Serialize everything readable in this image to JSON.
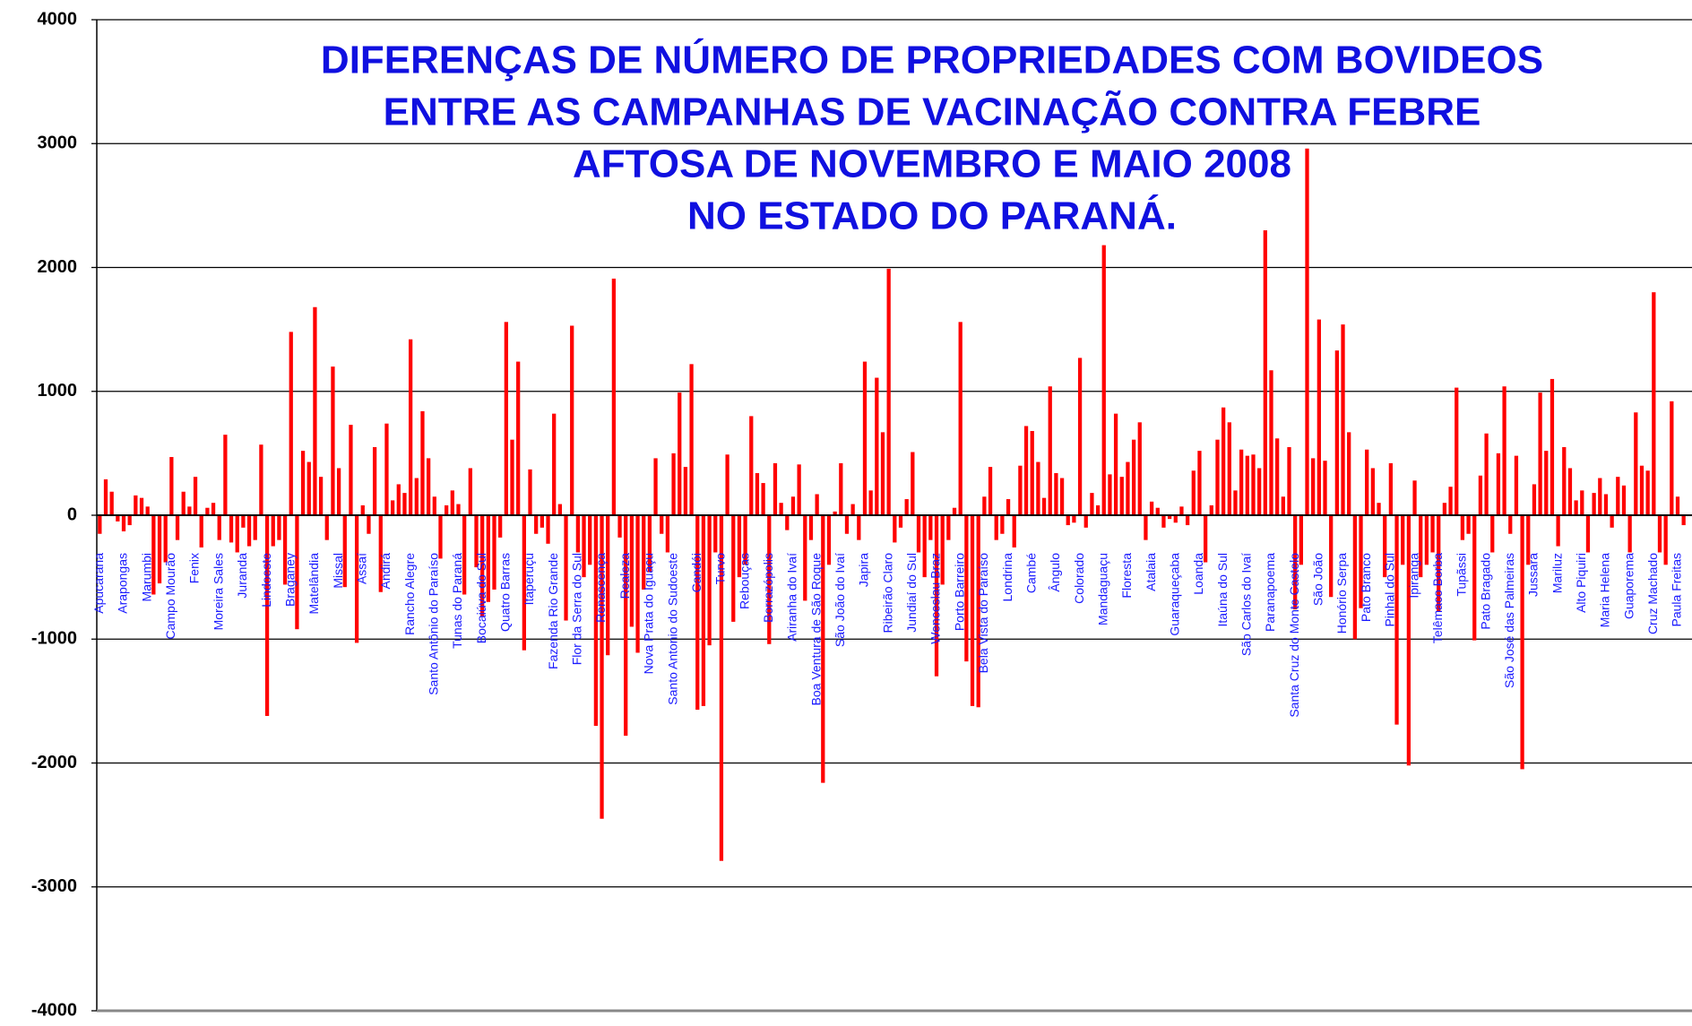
{
  "chart_data": {
    "type": "bar",
    "title": [
      "DIFERENÇAS DE NÚMERO DE PROPRIEDADES COM BOVIDEOS",
      "ENTRE AS CAMPANHAS DE VACINAÇÃO CONTRA FEBRE",
      "AFTOSA DE NOVEMBRO E MAIO 2008",
      "NO ESTADO DO PARANÁ."
    ],
    "color": "#ff0000",
    "grid": true,
    "ylim": [
      -4000,
      4000
    ],
    "yticks": [
      -4000,
      -3000,
      -2000,
      -1000,
      0,
      1000,
      2000,
      3000,
      4000
    ],
    "categories": [
      "Apucarana",
      null,
      null,
      null,
      "Arapongas",
      null,
      null,
      null,
      "Marumbi",
      null,
      null,
      null,
      "Campo Mourão",
      null,
      null,
      null,
      "Fenix",
      null,
      null,
      null,
      "Moreira Sales",
      null,
      null,
      null,
      "Juranda",
      null,
      null,
      null,
      "Lindoeste",
      null,
      null,
      null,
      "Braganey",
      null,
      null,
      null,
      "Matelândia",
      null,
      null,
      null,
      "Missal",
      null,
      null,
      null,
      "Assaí",
      null,
      null,
      null,
      "Andirá",
      null,
      null,
      null,
      "Rancho Alegre",
      null,
      null,
      null,
      "Santo Antônio do Paraíso",
      null,
      null,
      null,
      "Tunas do Paraná",
      null,
      null,
      null,
      "Bocaiúva do Sul",
      null,
      null,
      null,
      "Quatro Barras",
      null,
      null,
      null,
      "Itaperuçu",
      null,
      null,
      null,
      "Fazenda Rio Grande",
      null,
      null,
      null,
      "Flor da Serra do Sul",
      null,
      null,
      null,
      "Renascença",
      null,
      null,
      null,
      "Realeza",
      null,
      null,
      null,
      "Nova Prata do Iguaçu",
      null,
      null,
      null,
      "Santo Antonio do Sudoeste",
      null,
      null,
      null,
      "Candói",
      null,
      null,
      null,
      "Turvo",
      null,
      null,
      null,
      "Rebouças",
      null,
      null,
      null,
      "Borrazópolis",
      null,
      null,
      null,
      "Ariranha do Ivaí",
      null,
      null,
      null,
      "Boa Ventura de São Roque",
      null,
      null,
      null,
      "São João do Ivaí",
      null,
      null,
      null,
      "Japira",
      null,
      null,
      null,
      "Ribeirão Claro",
      null,
      null,
      null,
      "Jundiaí do Sul",
      null,
      null,
      null,
      "Wenceslau Braz",
      null,
      null,
      null,
      "Porto Barreiro",
      null,
      null,
      null,
      "Bela Vista do Paraíso",
      null,
      null,
      null,
      "Londrina",
      null,
      null,
      null,
      "Cambé",
      null,
      null,
      null,
      "Ângulo",
      null,
      null,
      null,
      "Colorado",
      null,
      null,
      null,
      "Mandaguaçu",
      null,
      null,
      null,
      "Floresta",
      null,
      null,
      null,
      "Atalaia",
      null,
      null,
      null,
      "Guaraqueçaba",
      null,
      null,
      null,
      "Loanda",
      null,
      null,
      null,
      "Itaúna do Sul",
      null,
      null,
      null,
      "São Carlos do Ivaí",
      null,
      null,
      null,
      "Paranapoema",
      null,
      null,
      null,
      "Santa Cruz do Monte Castelo",
      null,
      null,
      null,
      "São João",
      null,
      null,
      null,
      "Honório Serpa",
      null,
      null,
      null,
      "Pato Branco",
      null,
      null,
      null,
      "Pinhal do Sul",
      null,
      null,
      null,
      "Ipiranga",
      null,
      null,
      null,
      "Telêmaco Borba",
      null,
      null,
      null,
      "Tupãssi",
      null,
      null,
      null,
      "Pato Bragado",
      null,
      null,
      null,
      "São José das Palmeiras",
      null,
      null,
      null,
      "Jussara",
      null,
      null,
      null,
      "Mariluz",
      null,
      null,
      null,
      "Alto Piquiri",
      null,
      null,
      null,
      "Maria Helena",
      null,
      null,
      null,
      "Guaporema",
      null,
      null,
      null,
      "Cruz Machado",
      null,
      null,
      null,
      "Paula Freitas",
      null
    ],
    "values": [
      -150,
      290,
      190,
      -50,
      -130,
      -80,
      160,
      140,
      70,
      -640,
      -550,
      -380,
      470,
      -200,
      190,
      70,
      310,
      -260,
      60,
      100,
      -200,
      650,
      -220,
      -300,
      -100,
      -250,
      -200,
      570,
      -1620,
      -250,
      -200,
      -560,
      1480,
      -920,
      520,
      430,
      1680,
      310,
      -200,
      1200,
      380,
      -580,
      730,
      -1030,
      80,
      -150,
      550,
      -620,
      740,
      120,
      250,
      180,
      1420,
      300,
      840,
      460,
      150,
      -350,
      80,
      200,
      90,
      -640,
      380,
      -420,
      -820,
      -700,
      -600,
      -180,
      1560,
      610,
      1240,
      -1090,
      370,
      -150,
      -100,
      -230,
      820,
      90,
      -850,
      1530,
      -300,
      -500,
      -400,
      -1700,
      -2450,
      -1130,
      1910,
      -180,
      -1780,
      -900,
      -1110,
      -600,
      -460,
      460,
      -150,
      -300,
      500,
      990,
      390,
      1220,
      -1570,
      -1540,
      -1050,
      -300,
      -2790,
      490,
      -860,
      -500,
      -400,
      800,
      340,
      260,
      -1040,
      420,
      100,
      -120,
      150,
      410,
      -690,
      -200,
      170,
      -2160,
      -400,
      30,
      420,
      -150,
      90,
      -200,
      1240,
      200,
      1110,
      670,
      1990,
      -220,
      -100,
      130,
      510,
      -300,
      -500,
      -200,
      -1300,
      -560,
      -200,
      60,
      1560,
      -1180,
      -1540,
      -1550,
      150,
      390,
      -200,
      -150,
      130,
      -260,
      400,
      720,
      680,
      430,
      140,
      1040,
      340,
      300,
      -80,
      -60,
      1270,
      -100,
      180,
      80,
      2180,
      330,
      820,
      310,
      430,
      610,
      750,
      -200,
      110,
      60,
      -100,
      -30,
      -60,
      70,
      -80,
      360,
      520,
      -380,
      80,
      610,
      870,
      750,
      200,
      530,
      480,
      490,
      380,
      2300,
      1170,
      620,
      150,
      550,
      -760,
      -400,
      2960,
      460,
      1580,
      440,
      -660,
      1330,
      1540,
      670,
      -1000,
      -750,
      530,
      380,
      100,
      -500,
      420,
      -1690,
      -400,
      -2020,
      280,
      -500,
      -400,
      -300,
      -780,
      100,
      230,
      1030,
      -200,
      -150,
      -1010,
      320,
      660,
      -300,
      500,
      1040,
      -150,
      480,
      -2050,
      -400,
      250,
      990,
      520,
      1100,
      -250,
      550,
      380,
      120,
      200,
      -300,
      180,
      300,
      170,
      -100,
      310,
      240,
      -300,
      830,
      400,
      360,
      1800,
      -300,
      -400,
      920,
      150,
      -80
    ]
  }
}
